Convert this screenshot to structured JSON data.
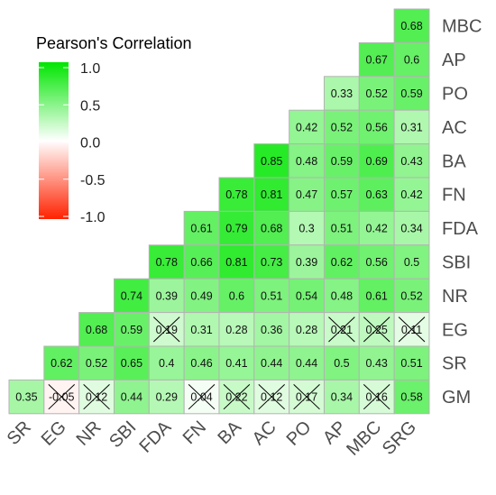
{
  "chart_data": {
    "type": "heatmap",
    "legend": {
      "title": "Pearson's Correlation",
      "ticks": [
        1.0,
        0.5,
        0.0,
        -0.5,
        -1.0
      ],
      "tick_labels": [
        "1.0",
        "0.5",
        "0.0",
        "-0.5",
        "-1.0"
      ],
      "position": "top-left",
      "colors": {
        "positive": "#00e600",
        "zero": "#ffffff",
        "negative": "#ff2200"
      }
    },
    "x_labels": [
      "SR",
      "EG",
      "NR",
      "SBI",
      "FDA",
      "FN",
      "BA",
      "AC",
      "PO",
      "AP",
      "MBC",
      "SRG"
    ],
    "y_labels": [
      "MBC",
      "AP",
      "PO",
      "AC",
      "BA",
      "FN",
      "FDA",
      "SBI",
      "NR",
      "EG",
      "SR",
      "GM"
    ],
    "rows": [
      {
        "label": "MBC",
        "values": [
          null,
          null,
          null,
          null,
          null,
          null,
          null,
          null,
          null,
          null,
          null,
          0.68
        ]
      },
      {
        "label": "AP",
        "values": [
          null,
          null,
          null,
          null,
          null,
          null,
          null,
          null,
          null,
          null,
          0.67,
          0.6
        ]
      },
      {
        "label": "PO",
        "values": [
          null,
          null,
          null,
          null,
          null,
          null,
          null,
          null,
          null,
          0.33,
          0.52,
          0.59
        ]
      },
      {
        "label": "AC",
        "values": [
          null,
          null,
          null,
          null,
          null,
          null,
          null,
          null,
          0.42,
          0.52,
          0.56,
          0.31
        ]
      },
      {
        "label": "BA",
        "values": [
          null,
          null,
          null,
          null,
          null,
          null,
          null,
          0.85,
          0.48,
          0.59,
          0.69,
          0.43
        ]
      },
      {
        "label": "FN",
        "values": [
          null,
          null,
          null,
          null,
          null,
          null,
          0.78,
          0.81,
          0.47,
          0.57,
          0.63,
          0.42
        ]
      },
      {
        "label": "FDA",
        "values": [
          null,
          null,
          null,
          null,
          null,
          0.61,
          0.79,
          0.68,
          0.3,
          0.51,
          0.42,
          0.34
        ]
      },
      {
        "label": "SBI",
        "values": [
          null,
          null,
          null,
          null,
          0.78,
          0.66,
          0.81,
          0.73,
          0.39,
          0.62,
          0.56,
          0.5
        ]
      },
      {
        "label": "NR",
        "values": [
          null,
          null,
          null,
          0.74,
          0.39,
          0.49,
          0.6,
          0.51,
          0.54,
          0.48,
          0.61,
          0.52
        ]
      },
      {
        "label": "EG",
        "values": [
          null,
          null,
          0.68,
          0.59,
          0.19,
          0.31,
          0.28,
          0.36,
          0.28,
          0.21,
          0.25,
          0.11
        ]
      },
      {
        "label": "SR",
        "values": [
          null,
          0.62,
          0.52,
          0.65,
          0.4,
          0.46,
          0.41,
          0.44,
          0.44,
          0.5,
          0.43,
          0.51
        ]
      },
      {
        "label": "GM",
        "values": [
          0.35,
          -0.05,
          0.12,
          0.44,
          0.29,
          0.04,
          0.22,
          0.12,
          0.17,
          0.34,
          0.16,
          0.58
        ]
      }
    ],
    "value_labels": [
      [
        null,
        null,
        null,
        null,
        null,
        null,
        null,
        null,
        null,
        null,
        null,
        "0.68"
      ],
      [
        null,
        null,
        null,
        null,
        null,
        null,
        null,
        null,
        null,
        null,
        "0.67",
        "0.6"
      ],
      [
        null,
        null,
        null,
        null,
        null,
        null,
        null,
        null,
        null,
        "0.33",
        "0.52",
        "0.59"
      ],
      [
        null,
        null,
        null,
        null,
        null,
        null,
        null,
        null,
        "0.42",
        "0.52",
        "0.56",
        "0.31"
      ],
      [
        null,
        null,
        null,
        null,
        null,
        null,
        null,
        "0.85",
        "0.48",
        "0.59",
        "0.69",
        "0.43"
      ],
      [
        null,
        null,
        null,
        null,
        null,
        null,
        "0.78",
        "0.81",
        "0.47",
        "0.57",
        "0.63",
        "0.42"
      ],
      [
        null,
        null,
        null,
        null,
        null,
        "0.61",
        "0.79",
        "0.68",
        "0.3",
        "0.51",
        "0.42",
        "0.34"
      ],
      [
        null,
        null,
        null,
        null,
        "0.78",
        "0.66",
        "0.81",
        "0.73",
        "0.39",
        "0.62",
        "0.56",
        "0.5"
      ],
      [
        null,
        null,
        null,
        "0.74",
        "0.39",
        "0.49",
        "0.6",
        "0.51",
        "0.54",
        "0.48",
        "0.61",
        "0.52"
      ],
      [
        null,
        null,
        "0.68",
        "0.59",
        "0.19",
        "0.31",
        "0.28",
        "0.36",
        "0.28",
        "0.21",
        "0.25",
        "0.11"
      ],
      [
        null,
        "0.62",
        "0.52",
        "0.65",
        "0.4",
        "0.46",
        "0.41",
        "0.44",
        "0.44",
        "0.5",
        "0.43",
        "0.51"
      ],
      [
        "0.35",
        "-0.05",
        "0.12",
        "0.44",
        "0.29",
        "0.04",
        "0.22",
        "0.12",
        "0.17",
        "0.34",
        "0.16",
        "0.58"
      ]
    ],
    "non_significant": [
      [
        9,
        4
      ],
      [
        9,
        9
      ],
      [
        9,
        10
      ],
      [
        9,
        11
      ],
      [
        11,
        1
      ],
      [
        11,
        2
      ],
      [
        11,
        5
      ],
      [
        11,
        6
      ],
      [
        11,
        7
      ],
      [
        11,
        8
      ],
      [
        11,
        10
      ]
    ],
    "grid": true
  }
}
